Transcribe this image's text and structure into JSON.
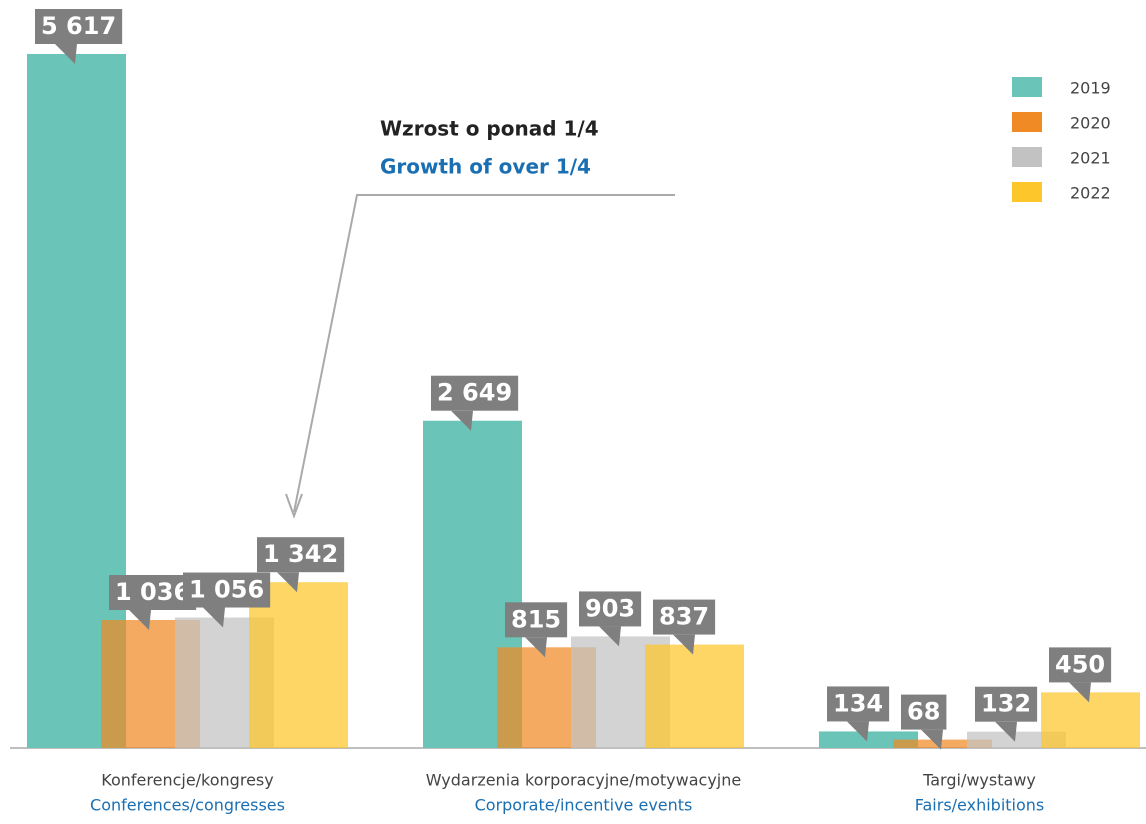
{
  "chart_data": {
    "type": "bar",
    "categories": [
      "Konferencje/kongresy",
      "Wydarzenia korporacyjne/motywacyjne",
      "Targi/wystawy"
    ],
    "category_translations": [
      "Conferences/congresses",
      "Corporate/incentive events",
      "Fairs/exhibitions"
    ],
    "series": [
      {
        "name": "2019",
        "color": "#6bc4b8",
        "values": [
          5617,
          2649,
          134
        ],
        "value_labels": [
          "5 617",
          "2 649",
          "134"
        ]
      },
      {
        "name": "2020",
        "color": "#f08a24",
        "values": [
          1036,
          815,
          68
        ],
        "value_labels": [
          "1 036",
          "815",
          "68"
        ]
      },
      {
        "name": "2021",
        "color": "#c2c2c2",
        "values": [
          1056,
          903,
          132
        ],
        "value_labels": [
          "1 056",
          "903",
          "132"
        ]
      },
      {
        "name": "2022",
        "color": "#fdc62a",
        "values": [
          1342,
          837,
          450
        ],
        "value_labels": [
          "1 342",
          "837",
          "450"
        ]
      }
    ],
    "annotation": {
      "text": "Wzrost o ponad 1/4",
      "translation": "Growth of over 1/4"
    },
    "legend": "top-right"
  }
}
